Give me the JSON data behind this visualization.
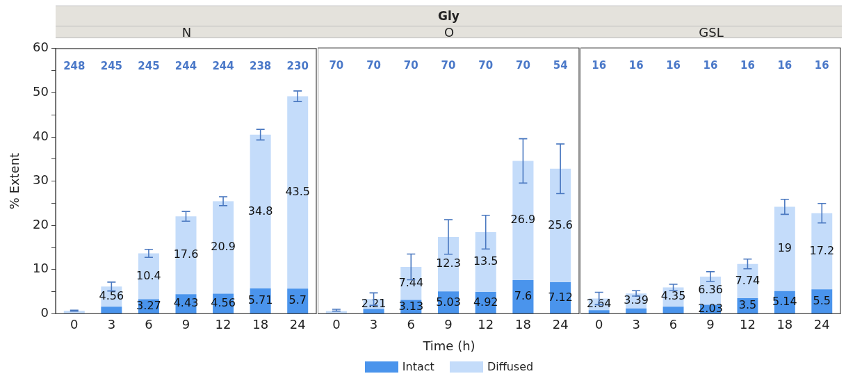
{
  "chart_data": [
    {
      "type": "bar",
      "title": "N",
      "ylabel": "% Extent",
      "categories": [
        "0",
        "3",
        "6",
        "9",
        "12",
        "18",
        "24"
      ],
      "stacked": true,
      "grid": false,
      "ylim": [
        0,
        60
      ],
      "yticks": [
        0,
        {
          "value": 5,
          "label": null
        },
        10,
        {
          "value": 15,
          "label": null
        },
        20,
        {
          "value": 25,
          "label": null
        },
        30,
        {
          "value": 35,
          "label": null
        },
        40,
        {
          "value": 45,
          "label": null
        },
        50,
        {
          "value": 55,
          "label": null
        },
        60
      ],
      "series": [
        {
          "color": "#4a94ec",
          "values": [
            null,
            1.6,
            3.27,
            4.43,
            4.56,
            5.71,
            5.7
          ],
          "value_labels": [
            null,
            null,
            "3.27",
            "4.43",
            "4.56",
            "5.71",
            "5.7"
          ]
        },
        {
          "color": "#c4dcfa",
          "values": [
            0.7,
            4.56,
            10.4,
            17.6,
            20.9,
            34.8,
            43.5
          ],
          "value_labels": [
            null,
            "4.56",
            "10.4",
            "17.6",
            "20.9",
            "34.8",
            "43.5"
          ],
          "errors": [
            0.1,
            1.0,
            0.9,
            1.1,
            1.0,
            1.2,
            1.2
          ]
        }
      ],
      "annotations": [
        "248",
        "245",
        "245",
        "244",
        "244",
        "238",
        "230"
      ]
    },
    {
      "type": "bar",
      "title": "O",
      "xlabel": "Time (h)",
      "legend": "bottom",
      "tick_labels": "x",
      "categories": [
        "0",
        "3",
        "6",
        "9",
        "12",
        "18",
        "24"
      ],
      "stacked": true,
      "grid": false,
      "ylim": [
        0,
        60
      ],
      "series": [
        {
          "name": "Intact",
          "color": "#4a94ec",
          "values": [
            null,
            1.1,
            3.13,
            5.03,
            4.92,
            7.6,
            7.12
          ],
          "value_labels": [
            null,
            null,
            "3.13",
            "5.03",
            "4.92",
            "7.6",
            "7.12"
          ]
        },
        {
          "name": "Diffused",
          "color": "#c4dcfa",
          "values": [
            0.6,
            2.21,
            7.44,
            12.3,
            13.5,
            26.9,
            25.6
          ],
          "value_labels": [
            null,
            "2.21",
            "7.44",
            "12.3",
            "13.5",
            "26.9",
            "25.6"
          ],
          "errors": [
            [
              0.6,
              1.0
            ],
            1.4,
            2.9,
            3.9,
            3.8,
            5.0,
            5.6
          ]
        }
      ],
      "annotations": [
        "70",
        "70",
        "70",
        "70",
        "70",
        "70",
        "54",
        "Gly"
      ]
    },
    {
      "type": "bar",
      "title": "GSL",
      "tick_labels": "x",
      "categories": [
        "0",
        "3",
        "6",
        "9",
        "12",
        "18",
        "24"
      ],
      "stacked": true,
      "grid": false,
      "ylim": [
        0,
        60
      ],
      "series": [
        {
          "color": "#4a94ec",
          "values": [
            0.8,
            1.2,
            1.6,
            2.03,
            3.5,
            5.14,
            5.5
          ],
          "value_labels": [
            null,
            null,
            null,
            "2.03",
            "3.5",
            "5.14",
            "5.5"
          ]
        },
        {
          "color": "#c4dcfa",
          "values": [
            2.64,
            3.39,
            4.35,
            6.36,
            7.74,
            19,
            17.2
          ],
          "value_labels": [
            "2.64",
            "3.39",
            "4.35",
            "6.36",
            "7.74",
            "19",
            "17.2"
          ],
          "errors": [
            1.4,
            0.6,
            0.7,
            1.1,
            1.1,
            1.7,
            2.2
          ]
        }
      ],
      "annotations": [
        "16",
        "16",
        "16",
        "16",
        "16",
        "16",
        "16"
      ]
    }
  ]
}
